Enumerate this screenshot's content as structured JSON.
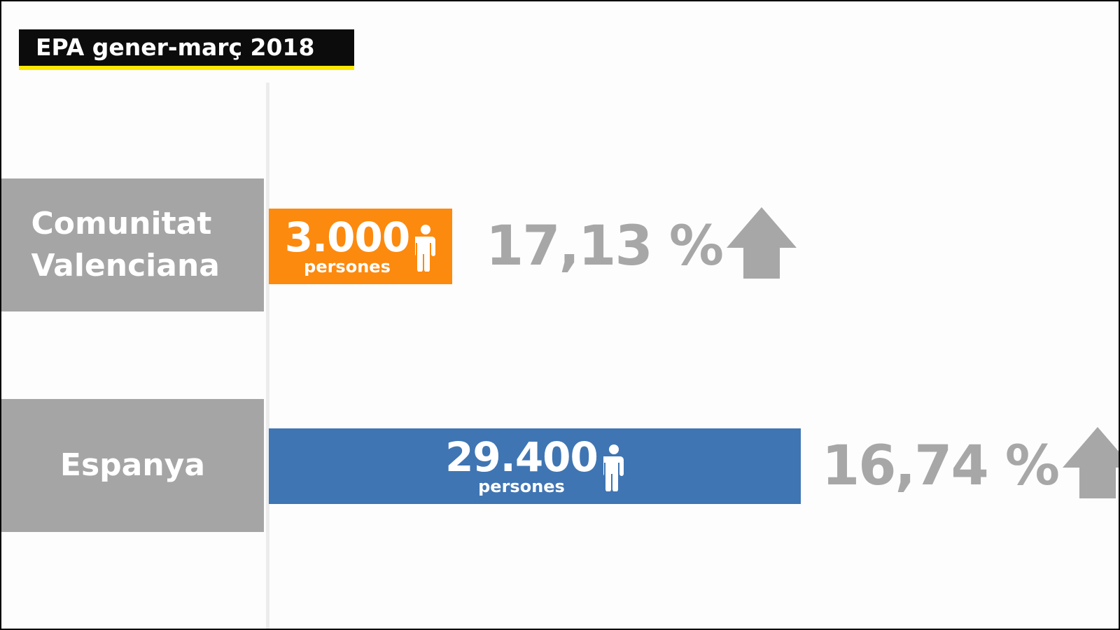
{
  "header": {
    "title": "EPA gener-març 2018"
  },
  "colors": {
    "label_bg": "#a5a5a5",
    "valenciana_bar": "#fc8a0e",
    "espanya_bar": "#3f75b3",
    "percent_text": "#a7a7a7",
    "title_bg": "#0c0c0c",
    "title_underline": "#ffe800"
  },
  "icons": {
    "person": "person-icon",
    "increase": "up-arrow-icon"
  },
  "chart_data": {
    "type": "bar",
    "orientation": "horizontal",
    "title": "EPA gener-març 2018",
    "categories": [
      "Comunitat Valenciana",
      "Espanya"
    ],
    "values": [
      3000,
      29400
    ],
    "value_labels": [
      "3.000",
      "29.400"
    ],
    "unit": "persones",
    "percentages": [
      "17,13 %",
      "16,74 %"
    ],
    "trend": [
      "up",
      "up"
    ],
    "rows": [
      {
        "label_line1": "Comunitat",
        "label_line2": "Valenciana",
        "value": 3000,
        "value_label": "3.000",
        "unit": "persones",
        "percent": "17,13 %",
        "trend": "up"
      },
      {
        "label_line1": "Espanya",
        "value": 29400,
        "value_label": "29.400",
        "unit": "persones",
        "percent": "16,74 %",
        "trend": "up"
      }
    ],
    "grid": false,
    "legend": "none"
  }
}
